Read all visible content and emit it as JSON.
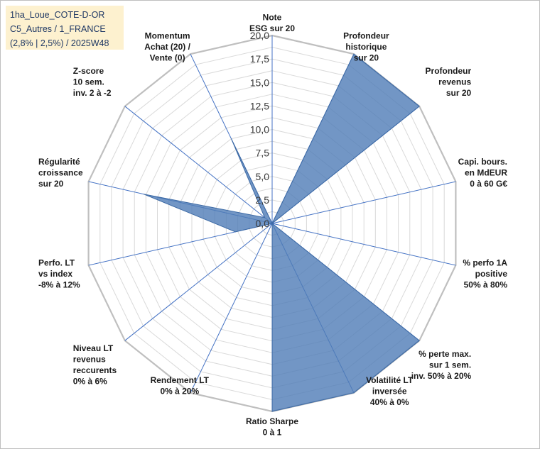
{
  "info": {
    "line1": "1ha_Loue_COTE-D-OR",
    "line2": "C5_Autres / 1_FRANCE",
    "line3": "(2,8% | 2,5%) / 2025W48"
  },
  "colors": {
    "fill": "#4f7cb6",
    "fill_opacity": 0.8,
    "stroke": "#3d6aa5",
    "spoke": "#4472c4",
    "grid": "#d9d9d9",
    "outer_ring": "#bfbfbf",
    "info_box_bg": "#fdf1cf"
  },
  "chart_data": {
    "type": "radar",
    "rmin": 0,
    "rmax": 20,
    "grid_step": 1.25,
    "tick_values": [
      0,
      2.5,
      5,
      7.5,
      10,
      12.5,
      15,
      17.5,
      20
    ],
    "tick_labels": [
      "0,0",
      "2,5",
      "5,0",
      "7,5",
      "10,0",
      "12,5",
      "15,0",
      "17,5",
      "20,0"
    ],
    "axes": [
      {
        "lines": [
          "Note",
          "ESG sur 20"
        ]
      },
      {
        "lines": [
          "Profondeur",
          "historique",
          "sur 20"
        ]
      },
      {
        "lines": [
          "Profondeur",
          "revenus",
          "sur 20"
        ]
      },
      {
        "lines": [
          "Capi. bours.",
          "en MdEUR",
          "0 à 60 G€"
        ]
      },
      {
        "lines": [
          "% perfo 1A",
          "positive",
          "50% à 80%"
        ]
      },
      {
        "lines": [
          "% perte max.",
          "sur 1 sem.",
          "inv. 50% à 20%"
        ]
      },
      {
        "lines": [
          "Volatilité LT",
          "inversée",
          "40% à 0%"
        ]
      },
      {
        "lines": [
          "Ratio Sharpe",
          "0 à 1"
        ]
      },
      {
        "lines": [
          "Rendement LT",
          "0% à 20%"
        ]
      },
      {
        "lines": [
          "Niveau LT",
          "revenus",
          "reccurents",
          "0% à 6%"
        ]
      },
      {
        "lines": [
          "Perfo. LT",
          "vs index",
          "-8% à 12%"
        ]
      },
      {
        "lines": [
          "Régularité",
          "croissance",
          "sur 20"
        ]
      },
      {
        "lines": [
          "Z-score",
          "10 sem.",
          "inv. 2 à -2"
        ]
      },
      {
        "lines": [
          "Momentum",
          "Achat (20) /",
          "Vente (0)"
        ]
      }
    ],
    "values": [
      0,
      20,
      20,
      0,
      0,
      20,
      20,
      20,
      0,
      0,
      4,
      14,
      1,
      10
    ]
  }
}
